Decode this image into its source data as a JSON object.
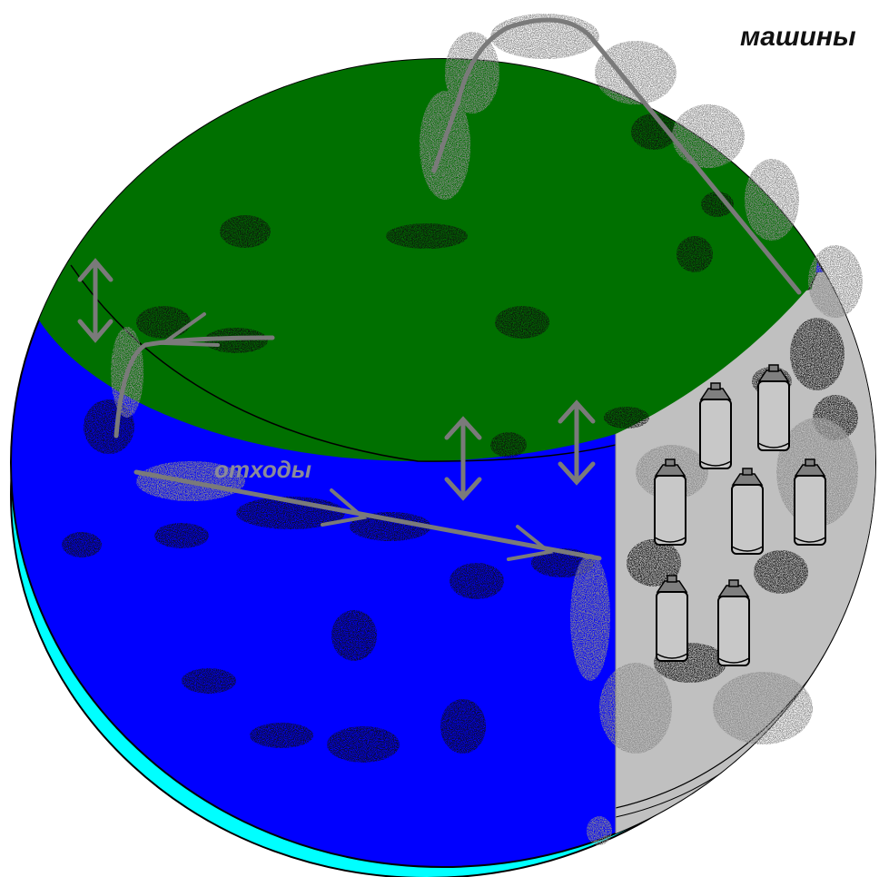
{
  "labels": {
    "machines": "машины",
    "waste": "отходы"
  },
  "colors": {
    "land": "#007000",
    "water": "#0000ff",
    "water_edge": "#00ffff",
    "industry": "#c0c0c0",
    "outline": "#000000",
    "arrow": "#7a7a7a",
    "pollution_dark": "#101010",
    "smoke_light": "#8c8c8c",
    "waste_label": "#8a8a9a"
  },
  "icons": {
    "factory_tanks": "cylinder-tank-icon",
    "exchange_arrows": "double-arrow-icon",
    "flow_arrows": "flow-arrow-icon"
  }
}
